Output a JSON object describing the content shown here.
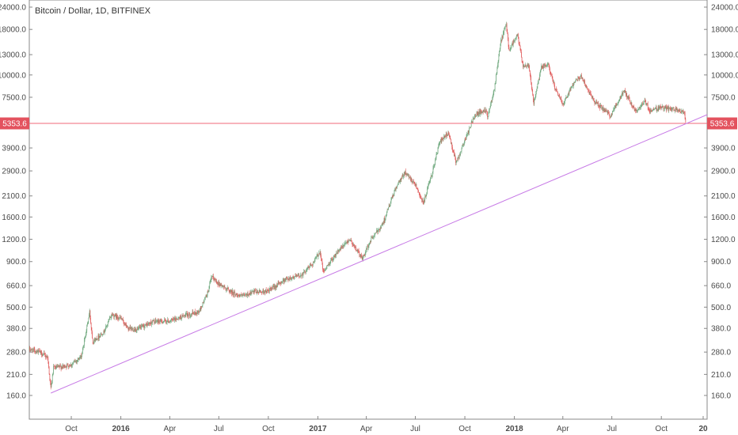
{
  "chart_data": {
    "type": "candlestick",
    "title": "Bitcoin / Dollar, 1D, BITFINEX",
    "scale": "log",
    "ylim": [
      135,
      24000
    ],
    "xlim": [
      "2015-07-15",
      "2018-12-25"
    ],
    "y_ticks": [
      "24000.0",
      "18000.0",
      "13000.0",
      "10000.0",
      "7500.0",
      "5353.6",
      "3900.0",
      "2900.0",
      "2100.0",
      "1600.0",
      "1200.0",
      "900.0",
      "660.0",
      "500.0",
      "380.0",
      "280.0",
      "210.0",
      "160.0"
    ],
    "y_tick_values": [
      24000,
      18000,
      13000,
      10000,
      7500,
      3900,
      2900,
      2100,
      1600,
      1200,
      900,
      660,
      500,
      380,
      280,
      210,
      160
    ],
    "x_ticks": [
      {
        "label": "Oct",
        "date": "2015-10-01",
        "bold": false
      },
      {
        "label": "2016",
        "date": "2016-01-01",
        "bold": true
      },
      {
        "label": "Apr",
        "date": "2016-04-01",
        "bold": false
      },
      {
        "label": "Jul",
        "date": "2016-07-01",
        "bold": false
      },
      {
        "label": "Oct",
        "date": "2016-10-01",
        "bold": false
      },
      {
        "label": "2017",
        "date": "2017-01-01",
        "bold": true
      },
      {
        "label": "Apr",
        "date": "2017-04-01",
        "bold": false
      },
      {
        "label": "Jul",
        "date": "2017-07-01",
        "bold": false
      },
      {
        "label": "Oct",
        "date": "2017-10-01",
        "bold": false
      },
      {
        "label": "2018",
        "date": "2018-01-01",
        "bold": true
      },
      {
        "label": "Apr",
        "date": "2018-04-01",
        "bold": false
      },
      {
        "label": "Jul",
        "date": "2018-07-01",
        "bold": false
      },
      {
        "label": "Oct",
        "date": "2018-10-01",
        "bold": false
      },
      {
        "label": "20",
        "date": "2019-01-01",
        "bold": true
      }
    ],
    "price_line": {
      "value": 5353.6,
      "label": "5353.6",
      "color": "#f06a7a"
    },
    "trendline": {
      "points": [
        [
          "2015-08-24",
          165
        ],
        [
          "2018-12-15",
          5100
        ]
      ],
      "color": "#c77ae6"
    },
    "colors": {
      "up": "#6fa87e",
      "down": "#e05a5a",
      "axis": "#555555",
      "border": "#888888",
      "tag": "#e3525e"
    },
    "series": [
      {
        "date": "2015-07-15",
        "close": 290
      },
      {
        "date": "2015-08-01",
        "close": 282
      },
      {
        "date": "2015-08-18",
        "close": 262
      },
      {
        "date": "2015-08-24",
        "close": 175
      },
      {
        "date": "2015-08-29",
        "close": 228
      },
      {
        "date": "2015-09-15",
        "close": 232
      },
      {
        "date": "2015-10-01",
        "close": 238
      },
      {
        "date": "2015-10-20",
        "close": 265
      },
      {
        "date": "2015-11-04",
        "close": 470
      },
      {
        "date": "2015-11-10",
        "close": 320
      },
      {
        "date": "2015-12-01",
        "close": 365
      },
      {
        "date": "2015-12-15",
        "close": 455
      },
      {
        "date": "2016-01-01",
        "close": 432
      },
      {
        "date": "2016-01-15",
        "close": 378
      },
      {
        "date": "2016-02-01",
        "close": 375
      },
      {
        "date": "2016-03-01",
        "close": 415
      },
      {
        "date": "2016-04-01",
        "close": 418
      },
      {
        "date": "2016-05-01",
        "close": 450
      },
      {
        "date": "2016-05-25",
        "close": 470
      },
      {
        "date": "2016-06-10",
        "close": 600
      },
      {
        "date": "2016-06-18",
        "close": 740
      },
      {
        "date": "2016-07-01",
        "close": 675
      },
      {
        "date": "2016-08-01",
        "close": 590
      },
      {
        "date": "2016-08-15",
        "close": 575
      },
      {
        "date": "2016-09-01",
        "close": 605
      },
      {
        "date": "2016-10-01",
        "close": 615
      },
      {
        "date": "2016-11-01",
        "close": 715
      },
      {
        "date": "2016-12-01",
        "close": 755
      },
      {
        "date": "2016-12-25",
        "close": 900
      },
      {
        "date": "2017-01-05",
        "close": 1030
      },
      {
        "date": "2017-01-11",
        "close": 785
      },
      {
        "date": "2017-02-01",
        "close": 975
      },
      {
        "date": "2017-03-01",
        "close": 1200
      },
      {
        "date": "2017-03-25",
        "close": 935
      },
      {
        "date": "2017-04-10",
        "close": 1200
      },
      {
        "date": "2017-05-01",
        "close": 1450
      },
      {
        "date": "2017-05-25",
        "close": 2300
      },
      {
        "date": "2017-06-12",
        "close": 2850
      },
      {
        "date": "2017-07-01",
        "close": 2450
      },
      {
        "date": "2017-07-16",
        "close": 1900
      },
      {
        "date": "2017-08-01",
        "close": 2800
      },
      {
        "date": "2017-08-15",
        "close": 4200
      },
      {
        "date": "2017-09-01",
        "close": 4700
      },
      {
        "date": "2017-09-15",
        "close": 3200
      },
      {
        "date": "2017-10-01",
        "close": 4300
      },
      {
        "date": "2017-10-20",
        "close": 6000
      },
      {
        "date": "2017-11-10",
        "close": 6400
      },
      {
        "date": "2017-11-12",
        "close": 5800
      },
      {
        "date": "2017-11-25",
        "close": 8500
      },
      {
        "date": "2017-12-07",
        "close": 15500
      },
      {
        "date": "2017-12-17",
        "close": 19200
      },
      {
        "date": "2017-12-22",
        "close": 13800
      },
      {
        "date": "2018-01-07",
        "close": 16800
      },
      {
        "date": "2018-01-17",
        "close": 11200
      },
      {
        "date": "2018-01-28",
        "close": 11400
      },
      {
        "date": "2018-02-06",
        "close": 6900
      },
      {
        "date": "2018-02-20",
        "close": 11000
      },
      {
        "date": "2018-03-05",
        "close": 11400
      },
      {
        "date": "2018-03-18",
        "close": 8300
      },
      {
        "date": "2018-04-01",
        "close": 6900
      },
      {
        "date": "2018-04-24",
        "close": 9400
      },
      {
        "date": "2018-05-05",
        "close": 9800
      },
      {
        "date": "2018-05-28",
        "close": 7200
      },
      {
        "date": "2018-06-28",
        "close": 5900
      },
      {
        "date": "2018-07-24",
        "close": 8200
      },
      {
        "date": "2018-08-14",
        "close": 6250
      },
      {
        "date": "2018-09-01",
        "close": 7100
      },
      {
        "date": "2018-09-10",
        "close": 6300
      },
      {
        "date": "2018-10-01",
        "close": 6600
      },
      {
        "date": "2018-10-15",
        "close": 6450
      },
      {
        "date": "2018-11-01",
        "close": 6350
      },
      {
        "date": "2018-11-13",
        "close": 6200
      },
      {
        "date": "2018-11-15",
        "close": 5350
      }
    ]
  }
}
